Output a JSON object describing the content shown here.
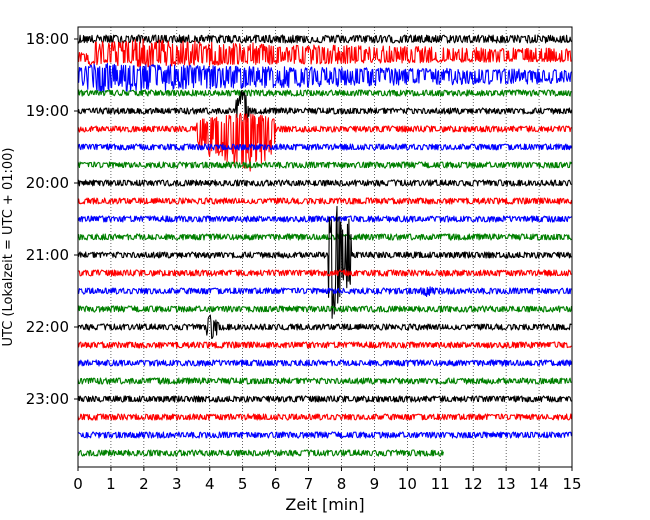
{
  "chart_data": {
    "type": "line",
    "title": "",
    "xlabel": "Zeit  [min]",
    "ylabel": "UTC (Lokalzeit = UTC + 01:00)",
    "xlim": [
      0,
      15
    ],
    "x_ticks": [
      0,
      1,
      2,
      3,
      4,
      5,
      6,
      7,
      8,
      9,
      10,
      11,
      12,
      13,
      14,
      15
    ],
    "x_tick_labels": [
      "0",
      "1",
      "2",
      "3",
      "4",
      "5",
      "6",
      "7",
      "8",
      "9",
      "10",
      "11",
      "12",
      "13",
      "14",
      "15"
    ],
    "y_ticks": [
      "18:00",
      "19:00",
      "20:00",
      "21:00",
      "22:00",
      "23:00"
    ],
    "grid": "vertical dotted at each minute",
    "trace_interval_min": 15,
    "trace_colors": [
      "#000000",
      "#ff0000",
      "#0000ff",
      "#008000"
    ],
    "traces": [
      {
        "time": "18:00",
        "color": "#000000",
        "end_min": 15,
        "amp": 4
      },
      {
        "time": "18:15",
        "color": "#ff0000",
        "end_min": 15,
        "amp": 5
      },
      {
        "time": "18:30",
        "color": "#0000ff",
        "end_min": 15,
        "amp": 5
      },
      {
        "time": "18:45",
        "color": "#008000",
        "end_min": 15,
        "amp": 3
      },
      {
        "time": "19:00",
        "color": "#000000",
        "end_min": 15,
        "amp": 3
      },
      {
        "time": "19:15",
        "color": "#ff0000",
        "end_min": 15,
        "amp": 3
      },
      {
        "time": "19:30",
        "color": "#0000ff",
        "end_min": 15,
        "amp": 3
      },
      {
        "time": "19:45",
        "color": "#008000",
        "end_min": 15,
        "amp": 3
      },
      {
        "time": "20:00",
        "color": "#000000",
        "end_min": 15,
        "amp": 3
      },
      {
        "time": "20:15",
        "color": "#ff0000",
        "end_min": 15,
        "amp": 3
      },
      {
        "time": "20:30",
        "color": "#0000ff",
        "end_min": 15,
        "amp": 3
      },
      {
        "time": "20:45",
        "color": "#008000",
        "end_min": 15,
        "amp": 3
      },
      {
        "time": "21:00",
        "color": "#000000",
        "end_min": 15,
        "amp": 3
      },
      {
        "time": "21:15",
        "color": "#ff0000",
        "end_min": 15,
        "amp": 3
      },
      {
        "time": "21:30",
        "color": "#0000ff",
        "end_min": 15,
        "amp": 3
      },
      {
        "time": "21:45",
        "color": "#008000",
        "end_min": 15,
        "amp": 3
      },
      {
        "time": "22:00",
        "color": "#000000",
        "end_min": 15,
        "amp": 3
      },
      {
        "time": "22:15",
        "color": "#ff0000",
        "end_min": 15,
        "amp": 3
      },
      {
        "time": "22:30",
        "color": "#0000ff",
        "end_min": 15,
        "amp": 3
      },
      {
        "time": "22:45",
        "color": "#008000",
        "end_min": 15,
        "amp": 3
      },
      {
        "time": "23:00",
        "color": "#000000",
        "end_min": 15,
        "amp": 3
      },
      {
        "time": "23:15",
        "color": "#ff0000",
        "end_min": 15,
        "amp": 3
      },
      {
        "time": "23:30",
        "color": "#0000ff",
        "end_min": 15,
        "amp": 3
      },
      {
        "time": "23:45",
        "color": "#008000",
        "end_min": 11.1,
        "amp": 3
      }
    ],
    "events": [
      {
        "trace_time": "18:15",
        "start_min": 0.3,
        "end_min": 15,
        "peak_min": 2.0,
        "amp_up": 18,
        "amp_down": 10,
        "note": "strong noise burst"
      },
      {
        "trace_time": "18:30",
        "start_min": 0.0,
        "end_min": 15,
        "peak_min": 0.5,
        "amp_up": 12,
        "amp_down": 18,
        "note": "strong noise burst"
      },
      {
        "trace_time": "19:00",
        "start_min": 4.8,
        "end_min": 5.2,
        "peak_min": 5.0,
        "amp_up": 25,
        "amp_down": 20,
        "note": "local event"
      },
      {
        "trace_time": "19:15",
        "start_min": 3.6,
        "end_min": 6.0,
        "peak_min": 5.0,
        "amp_up": 20,
        "amp_down": 50,
        "note": "local event"
      },
      {
        "trace_time": "21:00",
        "start_min": 7.6,
        "end_min": 8.3,
        "peak_min": 7.7,
        "amp_up": 70,
        "amp_down": 70,
        "note": "spike"
      },
      {
        "trace_time": "22:00",
        "start_min": 3.9,
        "end_min": 4.3,
        "peak_min": 4.05,
        "amp_up": 14,
        "amp_down": 14,
        "note": "local event"
      },
      {
        "trace_time": "21:30",
        "start_min": 10.3,
        "end_min": 10.9,
        "peak_min": 10.6,
        "amp_up": 6,
        "amp_down": 6,
        "note": "small event"
      }
    ]
  }
}
